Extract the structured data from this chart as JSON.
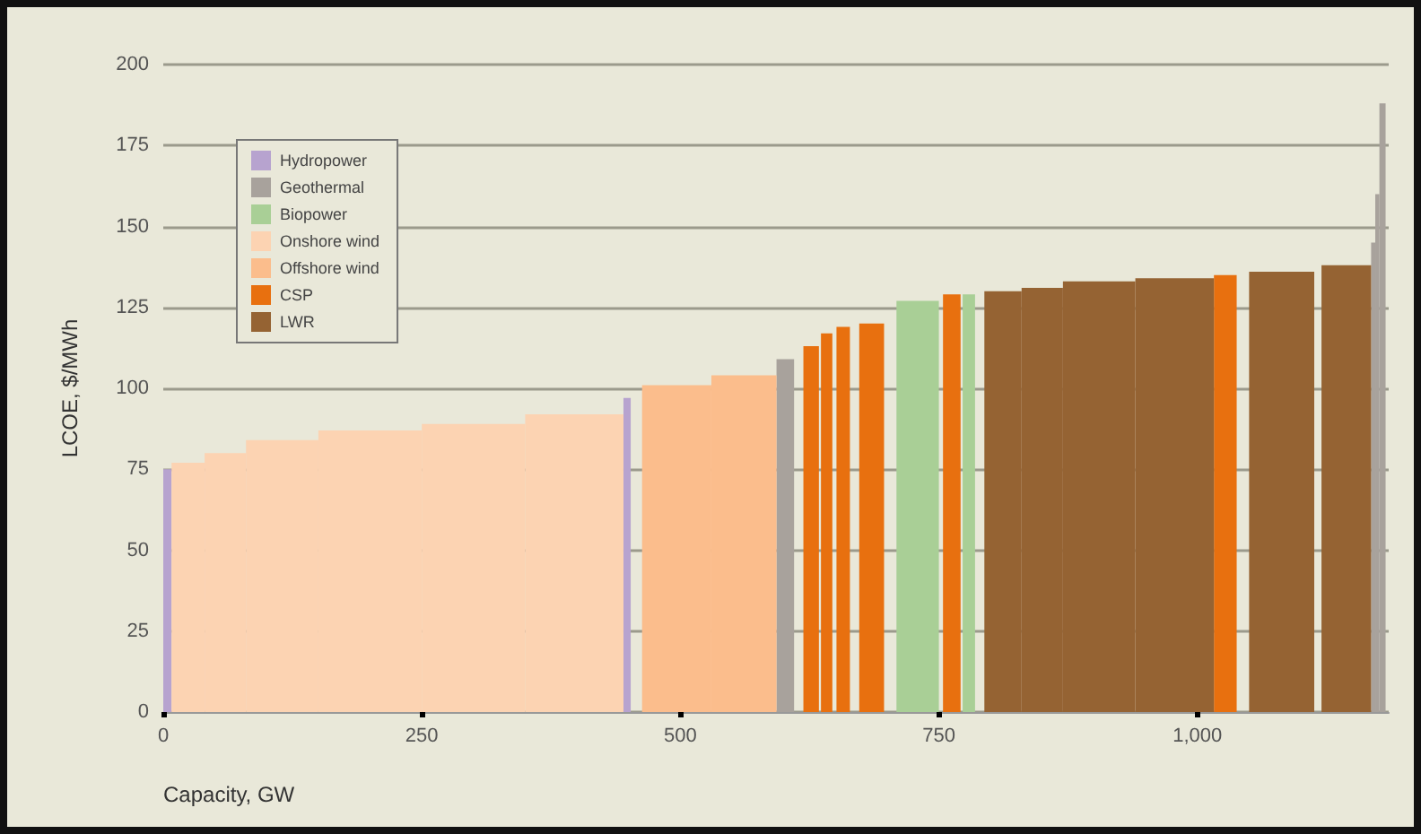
{
  "chart_data": {
    "type": "histogram",
    "xlabel": "Capacity, GW",
    "ylabel": "LCOE, $/MWh",
    "bins": [
      0,
      8,
      40,
      80,
      150,
      250,
      350,
      445,
      452,
      463,
      530,
      593,
      610,
      619,
      634,
      636,
      647,
      651,
      664,
      673,
      697,
      709,
      750,
      754,
      771,
      773,
      785,
      794,
      830,
      870,
      940,
      1016,
      1038,
      1050,
      1113,
      1120,
      1168,
      1172,
      1176,
      1182
    ],
    "series": [
      {
        "name": "Hydropower",
        "color": "#b7a3cf",
        "values": [
          75,
          null,
          null,
          null,
          null,
          null,
          null,
          97,
          null,
          null,
          null,
          null,
          null,
          null,
          null,
          null,
          null,
          null,
          null,
          null,
          null,
          null,
          null,
          null,
          null,
          null,
          null,
          null,
          null,
          null,
          null,
          null,
          null,
          null,
          null,
          null,
          null,
          null,
          null
        ]
      },
      {
        "name": "Geothermal",
        "color": "#a8a29c",
        "values": [
          null,
          null,
          null,
          null,
          null,
          null,
          null,
          null,
          null,
          null,
          null,
          109,
          null,
          null,
          null,
          null,
          null,
          null,
          null,
          null,
          null,
          null,
          null,
          null,
          null,
          null,
          null,
          null,
          null,
          null,
          null,
          null,
          null,
          null,
          null,
          null,
          145,
          160,
          188
        ]
      },
      {
        "name": "Biopower",
        "color": "#a9cf96",
        "values": [
          null,
          null,
          null,
          null,
          null,
          null,
          null,
          null,
          null,
          null,
          null,
          null,
          null,
          null,
          null,
          null,
          null,
          null,
          null,
          null,
          null,
          127,
          null,
          null,
          null,
          129,
          null,
          null,
          null,
          null,
          null,
          null,
          null,
          null,
          null,
          null,
          null,
          null,
          null
        ]
      },
      {
        "name": "Onshore wind",
        "color": "#fcd3b2",
        "values": [
          null,
          77,
          80,
          84,
          87,
          89,
          92,
          null,
          null,
          null,
          null,
          null,
          null,
          null,
          null,
          null,
          null,
          null,
          null,
          null,
          null,
          null,
          null,
          null,
          null,
          null,
          null,
          null,
          null,
          null,
          null,
          null,
          null,
          null,
          null,
          null,
          null,
          null,
          null
        ]
      },
      {
        "name": "Offshore wind",
        "color": "#fbbd8c",
        "values": [
          null,
          null,
          null,
          null,
          null,
          null,
          null,
          null,
          null,
          101,
          104,
          null,
          null,
          null,
          null,
          null,
          null,
          null,
          null,
          null,
          null,
          null,
          null,
          null,
          null,
          null,
          null,
          null,
          null,
          null,
          null,
          null,
          null,
          null,
          null,
          null,
          null,
          null,
          null
        ]
      },
      {
        "name": "CSP",
        "color": "#e8700f",
        "values": [
          null,
          null,
          null,
          null,
          null,
          null,
          null,
          null,
          null,
          null,
          null,
          null,
          null,
          113,
          null,
          117,
          null,
          119,
          null,
          120,
          null,
          null,
          null,
          129,
          null,
          null,
          null,
          null,
          null,
          null,
          null,
          135,
          null,
          null,
          null,
          null,
          null,
          null,
          null
        ]
      },
      {
        "name": "LWR",
        "color": "#956333",
        "values": [
          null,
          null,
          null,
          null,
          null,
          null,
          null,
          null,
          null,
          null,
          null,
          null,
          null,
          null,
          null,
          null,
          null,
          null,
          null,
          null,
          null,
          null,
          null,
          null,
          null,
          null,
          null,
          130,
          131,
          133,
          134,
          null,
          null,
          136,
          null,
          138,
          null,
          null,
          null
        ]
      }
    ],
    "xlim": [
      0,
      1185
    ],
    "xticks": [
      0,
      250,
      500,
      750,
      {
        "value": 1000,
        "label": "1,000"
      }
    ],
    "ylim": [
      0,
      200
    ],
    "yticks": [
      0,
      25,
      50,
      75,
      100,
      125,
      150,
      175,
      200
    ],
    "grid": "y",
    "legend": "top left"
  }
}
